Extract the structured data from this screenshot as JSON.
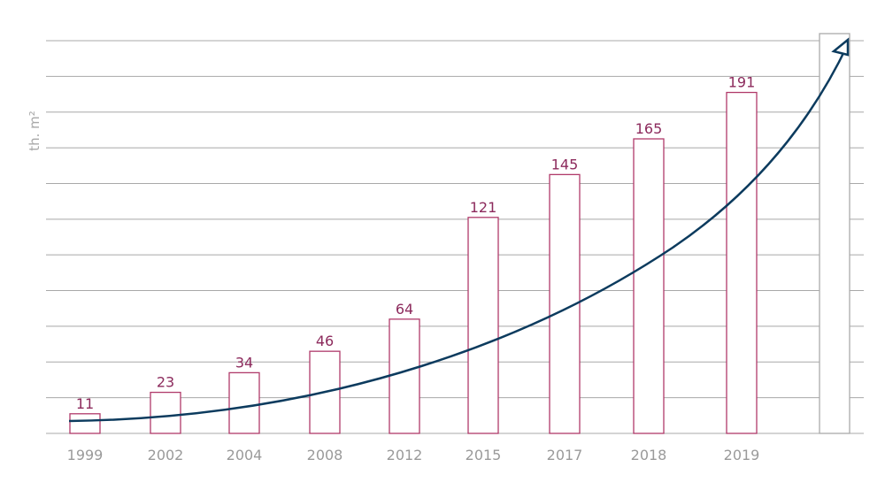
{
  "chart_data": {
    "type": "bar",
    "ylabel": "th. m²",
    "categories": [
      "1999",
      "2002",
      "2004",
      "2008",
      "2012",
      "2015",
      "2017",
      "2018",
      "2019",
      ""
    ],
    "values": [
      11,
      23,
      34,
      46,
      64,
      121,
      145,
      165,
      191,
      null
    ],
    "ylim": [
      0,
      220
    ],
    "grid": true,
    "trend_arrow": true,
    "colors": {
      "bar_outline": "#b03a6a",
      "labels": "#8c2a5c",
      "trend": "#0c3b5e",
      "grid": "#a8a8a8",
      "ticks": "#9a9a9a"
    }
  }
}
